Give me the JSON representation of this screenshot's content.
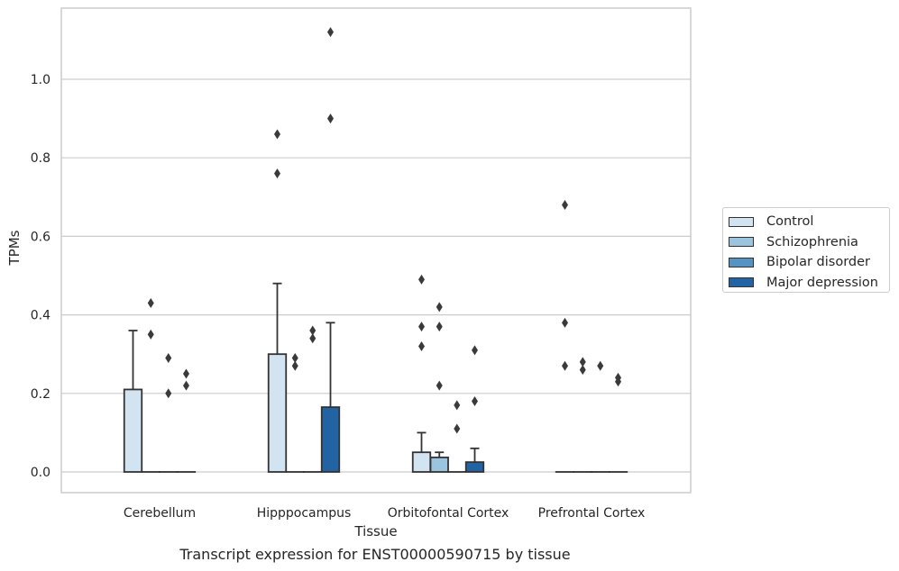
{
  "caption": "Transcript expression for ENST00000590715 by tissue",
  "chart_data": {
    "type": "bar",
    "title": "",
    "xlabel": "Tissue",
    "ylabel": "TPMs",
    "ylim": [
      -0.055,
      1.185
    ],
    "yticks": [
      "0.0",
      "0.2",
      "0.4",
      "0.6",
      "0.8",
      "1.0"
    ],
    "grid": "horizontal",
    "legend_position": "right",
    "categories": [
      "Cerebellum",
      "Hipppocampus",
      "Orbitofontal Cortex",
      "Prefrontal Cortex"
    ],
    "series": [
      {
        "name": "Control",
        "color": "#d2e3f2",
        "values": [
          0.21,
          0.3,
          0.05,
          0.0
        ],
        "whisker_high": [
          0.36,
          0.48,
          0.1,
          0.0
        ],
        "outliers": [
          [],
          [
            0.76,
            0.86
          ],
          [
            0.32,
            0.37,
            0.49
          ],
          [
            0.27,
            0.38,
            0.68
          ]
        ]
      },
      {
        "name": "Schizophrenia",
        "color": "#9bc5df",
        "values": [
          0.0,
          0.0,
          0.037,
          0.0
        ],
        "whisker_high": [
          0.0,
          0.0,
          0.05,
          0.0
        ],
        "outliers": [
          [
            0.35,
            0.43
          ],
          [
            0.27,
            0.29
          ],
          [
            0.22,
            0.37,
            0.42
          ],
          [
            0.26,
            0.28
          ]
        ]
      },
      {
        "name": "Bipolar disorder",
        "color": "#5493c4",
        "values": [
          0.0,
          0.0,
          0.0,
          0.0
        ],
        "whisker_high": [
          0.0,
          0.0,
          0.0,
          0.0
        ],
        "outliers": [
          [
            0.2,
            0.29
          ],
          [
            0.34,
            0.36
          ],
          [
            0.11,
            0.17
          ],
          [
            0.27
          ]
        ]
      },
      {
        "name": "Major depression",
        "color": "#2163a3",
        "values": [
          0.0,
          0.165,
          0.025,
          0.0
        ],
        "whisker_high": [
          0.0,
          0.38,
          0.06,
          0.0
        ],
        "outliers": [
          [
            0.22,
            0.25
          ],
          [
            0.9,
            1.12
          ],
          [
            0.18,
            0.31
          ],
          [
            0.23,
            0.24
          ]
        ]
      }
    ]
  }
}
